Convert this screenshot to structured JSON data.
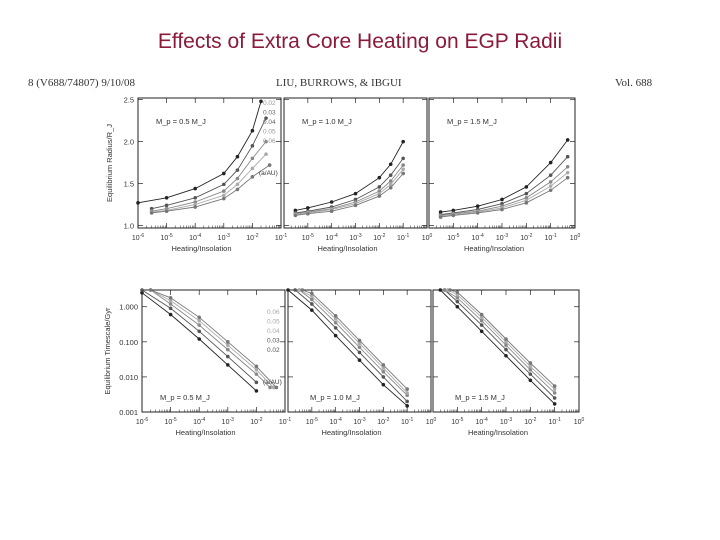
{
  "slide": {
    "title": "Effects of Extra Core Heating on EGP Radii"
  },
  "paper_header": {
    "left": "8 (V688/74807) 9/10/08",
    "center": "LIU, BURROWS, & IBGUI",
    "right": "Vol. 688"
  },
  "colors": {
    "title": "#8b1a3a",
    "curves": [
      "#222222",
      "#555555",
      "#888888",
      "#aaaaaa",
      "#777777",
      "#444444"
    ]
  },
  "chart_data": [
    {
      "type": "line",
      "panel": "radius-0.5",
      "ylabel": "Equilibrium Radius/R_J",
      "xlabel": "Heating/Insolation",
      "mass_label": "M_p = 0.5 M_J",
      "x_scale": "log",
      "x_ticks": [
        "10^-6",
        "10^-5",
        "10^-4",
        "10^-3",
        "10^-2",
        "10^-1"
      ],
      "xlim": [
        1e-06,
        0.1
      ],
      "ylim": [
        0.97,
        2.52
      ],
      "y_ticks": [
        "1.0",
        "1.5",
        "2.0",
        "2.5"
      ],
      "y_tick_values": [
        1.0,
        1.5,
        2.0,
        2.5
      ],
      "series_labels": [
        "0.02",
        "0.03",
        "0.04",
        "0.05",
        "0.06"
      ],
      "series_title": "(a/AU)",
      "series": [
        {
          "x": [
            1e-06,
            1e-05,
            0.0001,
            0.001,
            0.003,
            0.01,
            0.02
          ],
          "y": [
            1.27,
            1.33,
            1.44,
            1.62,
            1.82,
            2.13,
            2.48
          ]
        },
        {
          "x": [
            3e-06,
            1e-05,
            0.0001,
            0.001,
            0.003,
            0.01,
            0.03
          ],
          "y": [
            1.2,
            1.24,
            1.33,
            1.49,
            1.66,
            1.95,
            2.28
          ]
        },
        {
          "x": [
            3e-06,
            1e-05,
            0.0001,
            0.001,
            0.003,
            0.01,
            0.03
          ],
          "y": [
            1.17,
            1.2,
            1.28,
            1.41,
            1.56,
            1.8,
            2.0
          ]
        },
        {
          "x": [
            3e-06,
            1e-05,
            0.0001,
            0.001,
            0.003,
            0.01,
            0.03
          ],
          "y": [
            1.16,
            1.18,
            1.25,
            1.36,
            1.49,
            1.68,
            1.85
          ]
        },
        {
          "x": [
            3e-06,
            1e-05,
            0.0001,
            0.001,
            0.003,
            0.01,
            0.04
          ],
          "y": [
            1.15,
            1.17,
            1.22,
            1.32,
            1.43,
            1.58,
            1.72
          ]
        }
      ]
    },
    {
      "type": "line",
      "panel": "radius-1.0",
      "xlabel": "Heating/Insolation",
      "mass_label": "M_p = 1.0 M_J",
      "x_scale": "log",
      "x_ticks": [
        "10^-5",
        "10^-4",
        "10^-3",
        "10^-2",
        "10^-1",
        "10^0"
      ],
      "xlim": [
        1e-06,
        1
      ],
      "ylim": [
        0.97,
        2.52
      ],
      "series": [
        {
          "x": [
            3e-06,
            1e-05,
            0.0001,
            0.001,
            0.01,
            0.03,
            0.1
          ],
          "y": [
            1.18,
            1.21,
            1.28,
            1.38,
            1.57,
            1.73,
            2.0
          ]
        },
        {
          "x": [
            3e-06,
            1e-05,
            0.0001,
            0.001,
            0.01,
            0.03,
            0.1
          ],
          "y": [
            1.15,
            1.17,
            1.22,
            1.31,
            1.46,
            1.6,
            1.8
          ]
        },
        {
          "x": [
            3e-06,
            1e-05,
            0.0001,
            0.001,
            0.01,
            0.03,
            0.1
          ],
          "y": [
            1.14,
            1.16,
            1.2,
            1.28,
            1.41,
            1.53,
            1.72
          ]
        },
        {
          "x": [
            3e-06,
            1e-05,
            0.0001,
            0.001,
            0.01,
            0.03,
            0.1
          ],
          "y": [
            1.13,
            1.15,
            1.19,
            1.26,
            1.38,
            1.49,
            1.67
          ]
        },
        {
          "x": [
            3e-06,
            1e-05,
            0.0001,
            0.001,
            0.01,
            0.03,
            0.1
          ],
          "y": [
            1.12,
            1.14,
            1.17,
            1.24,
            1.35,
            1.45,
            1.62
          ]
        }
      ]
    },
    {
      "type": "line",
      "panel": "radius-1.5",
      "xlabel": "Heating/Insolation",
      "mass_label": "M_p = 1.5 M_J",
      "x_scale": "log",
      "x_ticks": [
        "10^-5",
        "10^-4",
        "10^-3",
        "10^-2",
        "10^-1",
        "10^0"
      ],
      "xlim": [
        1e-06,
        1
      ],
      "ylim": [
        0.97,
        2.52
      ],
      "series": [
        {
          "x": [
            3e-06,
            1e-05,
            0.0001,
            0.001,
            0.01,
            0.1,
            0.5
          ],
          "y": [
            1.16,
            1.18,
            1.23,
            1.31,
            1.46,
            1.75,
            2.02
          ]
        },
        {
          "x": [
            3e-06,
            1e-05,
            0.0001,
            0.001,
            0.01,
            0.1,
            0.5
          ],
          "y": [
            1.13,
            1.15,
            1.19,
            1.26,
            1.38,
            1.6,
            1.82
          ]
        },
        {
          "x": [
            3e-06,
            1e-05,
            0.0001,
            0.001,
            0.01,
            0.1,
            0.5
          ],
          "y": [
            1.12,
            1.14,
            1.17,
            1.23,
            1.33,
            1.52,
            1.7
          ]
        },
        {
          "x": [
            3e-06,
            1e-05,
            0.0001,
            0.001,
            0.01,
            0.1,
            0.5
          ],
          "y": [
            1.11,
            1.13,
            1.16,
            1.21,
            1.3,
            1.47,
            1.63
          ]
        },
        {
          "x": [
            3e-06,
            1e-05,
            0.0001,
            0.001,
            0.01,
            0.1,
            0.5
          ],
          "y": [
            1.1,
            1.12,
            1.15,
            1.19,
            1.27,
            1.42,
            1.57
          ]
        }
      ]
    },
    {
      "type": "line",
      "panel": "timescale-0.5",
      "ylabel": "Equilibrium Timescale/Gyr",
      "xlabel": "Heating/Insolation",
      "mass_label": "M_p = 0.5 M_J",
      "x_scale": "log",
      "y_scale": "log",
      "x_ticks": [
        "10^-6",
        "10^-5",
        "10^-4",
        "10^-3",
        "10^-2",
        "10^-1"
      ],
      "xlim": [
        1e-06,
        0.1
      ],
      "ylim": [
        0.001,
        3
      ],
      "y_ticks": [
        "1.000",
        "0.100",
        "0.010",
        "0.001"
      ],
      "y_tick_values": [
        1,
        0.1,
        0.01,
        0.001
      ],
      "series_labels": [
        "0.06",
        "0.05",
        "0.04",
        "0.03",
        "0.02"
      ],
      "series_title": "(a/AU)",
      "series": [
        {
          "x": [
            1e-06,
            1e-05,
            0.0001,
            0.001,
            0.01
          ],
          "y": [
            2.5,
            0.6,
            0.12,
            0.022,
            0.004
          ]
        },
        {
          "x": [
            1e-06,
            1e-05,
            0.0001,
            0.001,
            0.01
          ],
          "y": [
            3.0,
            0.9,
            0.2,
            0.038,
            0.007
          ]
        },
        {
          "x": [
            2e-06,
            1e-05,
            0.0001,
            0.001,
            0.01,
            0.03
          ],
          "y": [
            3.0,
            1.2,
            0.3,
            0.06,
            0.012,
            0.005
          ]
        },
        {
          "x": [
            2e-06,
            1e-05,
            0.0001,
            0.001,
            0.01,
            0.04
          ],
          "y": [
            3.0,
            1.5,
            0.4,
            0.08,
            0.016,
            0.005
          ]
        },
        {
          "x": [
            2e-06,
            1e-05,
            0.0001,
            0.001,
            0.01,
            0.05
          ],
          "y": [
            3.0,
            1.8,
            0.5,
            0.1,
            0.02,
            0.005
          ]
        }
      ]
    },
    {
      "type": "line",
      "panel": "timescale-1.0",
      "xlabel": "Heating/Insolation",
      "mass_label": "M_p = 1.0 M_J",
      "x_scale": "log",
      "y_scale": "log",
      "x_ticks": [
        "10^-5",
        "10^-4",
        "10^-3",
        "10^-2",
        "10^-1",
        "10^0"
      ],
      "xlim": [
        1e-06,
        1
      ],
      "ylim": [
        0.001,
        3
      ],
      "series": [
        {
          "x": [
            1e-06,
            1e-05,
            0.0001,
            0.001,
            0.01,
            0.1
          ],
          "y": [
            3.0,
            0.8,
            0.15,
            0.03,
            0.006,
            0.0015
          ]
        },
        {
          "x": [
            2e-06,
            1e-05,
            0.0001,
            0.001,
            0.01,
            0.1
          ],
          "y": [
            3.0,
            1.2,
            0.25,
            0.05,
            0.01,
            0.002
          ]
        },
        {
          "x": [
            3e-06,
            1e-05,
            0.0001,
            0.001,
            0.01,
            0.1
          ],
          "y": [
            3.0,
            1.6,
            0.35,
            0.07,
            0.014,
            0.003
          ]
        },
        {
          "x": [
            3e-06,
            1e-05,
            0.0001,
            0.001,
            0.01,
            0.1
          ],
          "y": [
            3.0,
            2.0,
            0.45,
            0.09,
            0.018,
            0.0035
          ]
        },
        {
          "x": [
            4e-06,
            1e-05,
            0.0001,
            0.001,
            0.01,
            0.1
          ],
          "y": [
            3.0,
            2.4,
            0.55,
            0.11,
            0.022,
            0.0045
          ]
        }
      ]
    },
    {
      "type": "line",
      "panel": "timescale-1.5",
      "xlabel": "Heating/Insolation",
      "mass_label": "M_p = 1.5 M_J",
      "x_scale": "log",
      "y_scale": "log",
      "x_ticks": [
        "10^-5",
        "10^-4",
        "10^-3",
        "10^-2",
        "10^-1",
        "10^0"
      ],
      "xlim": [
        1e-06,
        1
      ],
      "ylim": [
        0.001,
        3
      ],
      "series": [
        {
          "x": [
            2e-06,
            1e-05,
            0.0001,
            0.001,
            0.01,
            0.1
          ],
          "y": [
            3.0,
            1.0,
            0.2,
            0.04,
            0.008,
            0.0017
          ]
        },
        {
          "x": [
            3e-06,
            1e-05,
            0.0001,
            0.001,
            0.01,
            0.1
          ],
          "y": [
            3.0,
            1.4,
            0.3,
            0.06,
            0.012,
            0.0025
          ]
        },
        {
          "x": [
            3e-06,
            1e-05,
            0.0001,
            0.001,
            0.01,
            0.1
          ],
          "y": [
            3.0,
            1.8,
            0.4,
            0.08,
            0.016,
            0.0035
          ]
        },
        {
          "x": [
            4e-06,
            1e-05,
            0.0001,
            0.001,
            0.01,
            0.1
          ],
          "y": [
            3.0,
            2.2,
            0.5,
            0.1,
            0.02,
            0.0045
          ]
        },
        {
          "x": [
            5e-06,
            1e-05,
            0.0001,
            0.001,
            0.01,
            0.1
          ],
          "y": [
            3.0,
            2.6,
            0.6,
            0.12,
            0.025,
            0.0055
          ]
        }
      ]
    }
  ]
}
